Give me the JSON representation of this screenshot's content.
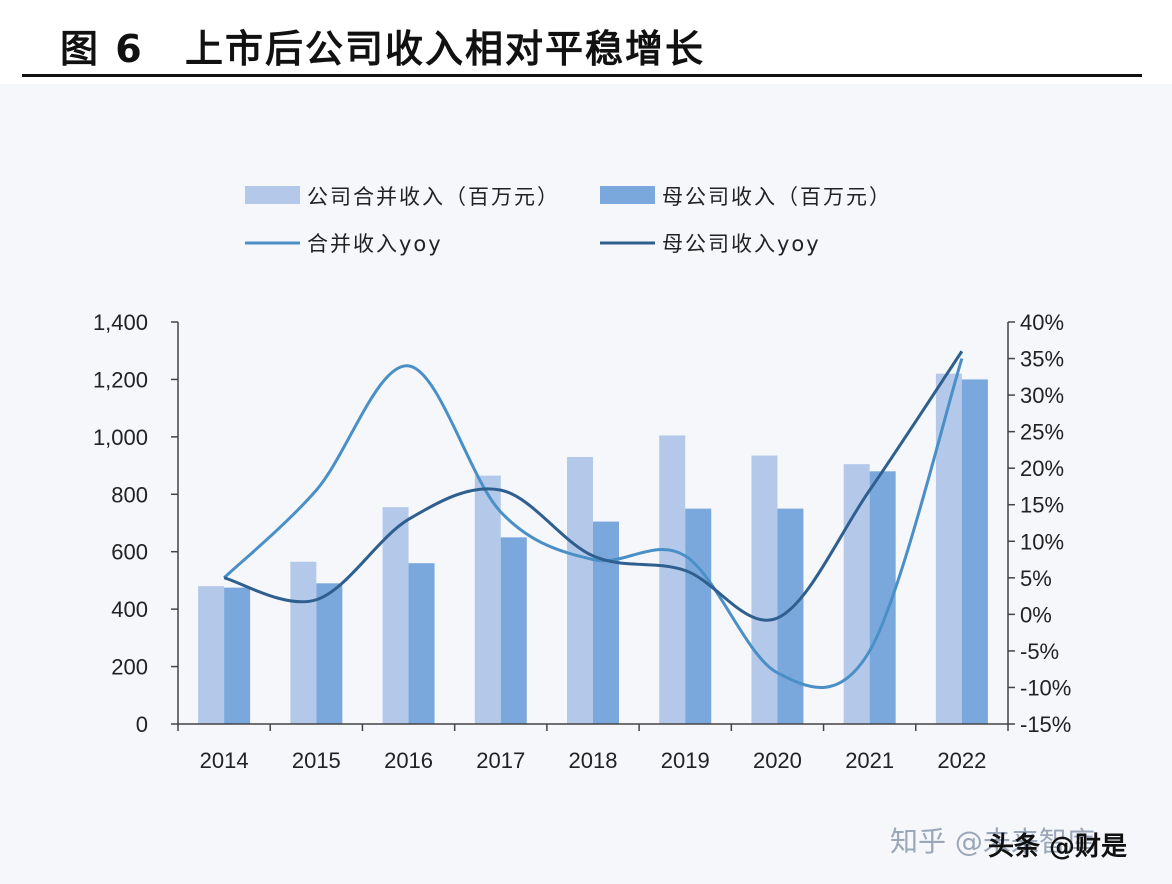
{
  "header": {
    "figure_label": "图 6",
    "title": "上市后公司收入相对平稳增长"
  },
  "chart_data": {
    "type": "bar",
    "categories": [
      "2014",
      "2015",
      "2016",
      "2017",
      "2018",
      "2019",
      "2020",
      "2021",
      "2022"
    ],
    "series": [
      {
        "name": "公司合并收入（百万元）",
        "kind": "bar",
        "axis": "left",
        "color": "#b4c9ea",
        "values": [
          480,
          565,
          755,
          865,
          930,
          1005,
          935,
          905,
          1220
        ]
      },
      {
        "name": "母公司收入（百万元）",
        "kind": "bar",
        "axis": "left",
        "color": "#7aa8dc",
        "values": [
          475,
          490,
          560,
          650,
          705,
          750,
          750,
          880,
          1200
        ]
      },
      {
        "name": "合并收入yoy",
        "kind": "line",
        "axis": "right",
        "color": "#4a90c6",
        "values": [
          5,
          17,
          34,
          14,
          7.5,
          8,
          -8,
          -5,
          35
        ]
      },
      {
        "name": "母公司收入yoy",
        "kind": "line",
        "axis": "right",
        "color": "#2f5f8f",
        "values": [
          5,
          2,
          13,
          17,
          8,
          6,
          -0.5,
          17,
          36
        ]
      }
    ],
    "left_axis": {
      "min": 0,
      "max": 1400,
      "ticks": [
        "0",
        "200",
        "400",
        "600",
        "800",
        "1,000",
        "1,200",
        "1,400"
      ]
    },
    "right_axis": {
      "min": -15,
      "max": 40,
      "ticks": [
        "-15%",
        "-10%",
        "-5%",
        "0%",
        "5%",
        "10%",
        "15%",
        "20%",
        "25%",
        "30%",
        "35%",
        "40%"
      ]
    },
    "legend_position": "top",
    "grid": false
  },
  "watermark": {
    "left": "知乎 @未来智库",
    "right": "头条 @财是"
  }
}
